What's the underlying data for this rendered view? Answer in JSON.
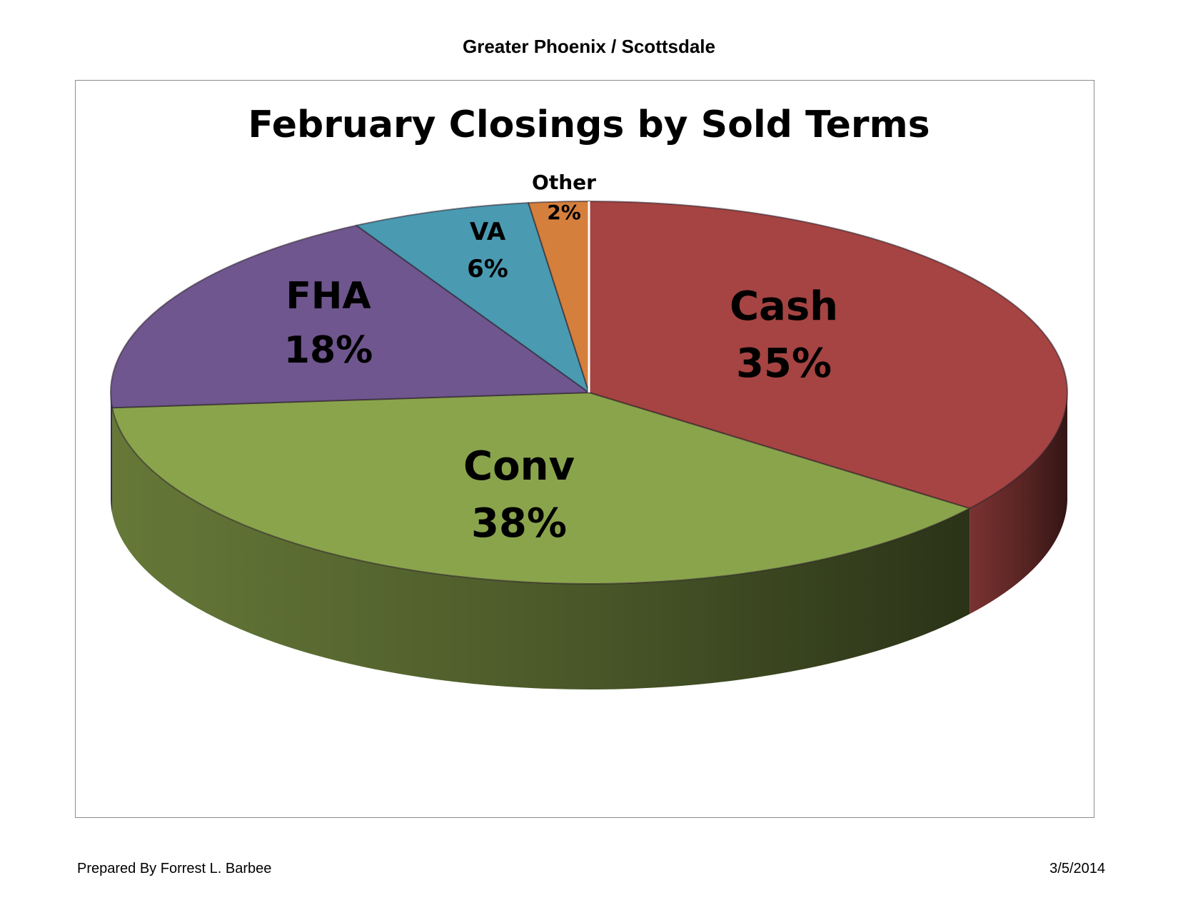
{
  "page": {
    "header": "Greater Phoenix / Scottsdale",
    "prepared_by": "Prepared By Forrest L. Barbee",
    "date": "3/5/2014"
  },
  "chart_data": {
    "type": "pie",
    "title": "February Closings by Sold Terms",
    "three_d": true,
    "legend": "none",
    "slices": [
      {
        "label": "Cash",
        "value": 35,
        "display": "35%",
        "color": "#a54442"
      },
      {
        "label": "Conv",
        "value": 38,
        "display": "38%",
        "color": "#8aa44c"
      },
      {
        "label": "FHA",
        "value": 18,
        "display": "18%",
        "color": "#6f568e"
      },
      {
        "label": "VA",
        "value": 6,
        "display": "6%",
        "color": "#4a9ab2"
      },
      {
        "label": "Other",
        "value": 2,
        "display": "2%",
        "color": "#d57f3d"
      }
    ]
  }
}
